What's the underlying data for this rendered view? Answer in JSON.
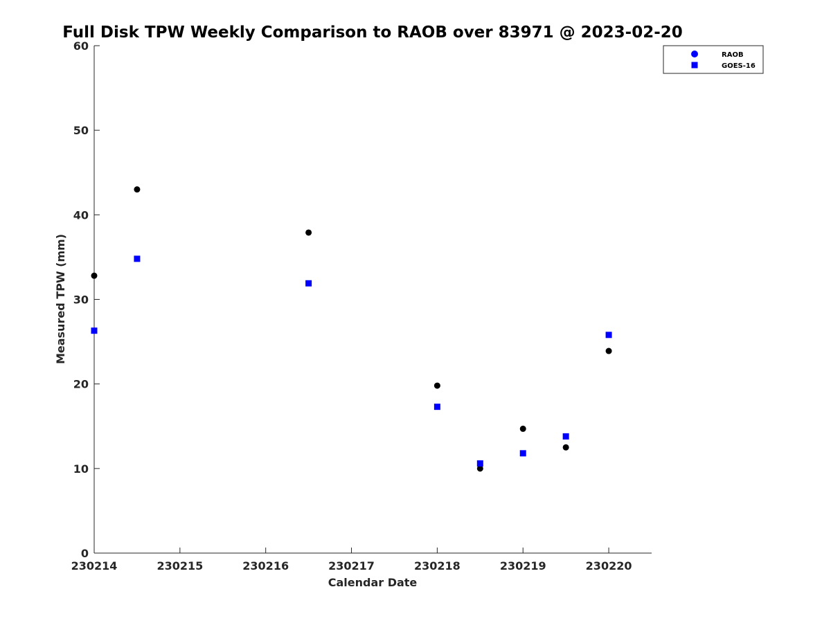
{
  "chart_data": {
    "type": "scatter",
    "title": "Full Disk TPW Weekly Comparison to RAOB over 83971 @ 2023-02-20",
    "xlabel": "Calendar Date",
    "ylabel": "Measured TPW (mm)",
    "xlim": [
      230214,
      230220.5
    ],
    "ylim": [
      0,
      60
    ],
    "xticks": [
      230214,
      230215,
      230216,
      230217,
      230218,
      230219,
      230220
    ],
    "xtick_labels": [
      "230214",
      "230215",
      "230216",
      "230217",
      "230218",
      "230219",
      "230220"
    ],
    "yticks": [
      0,
      10,
      20,
      30,
      40,
      50,
      60
    ],
    "ytick_labels": [
      "0",
      "10",
      "20",
      "30",
      "40",
      "50",
      "60"
    ],
    "grid": false,
    "legend_position": "top-right",
    "series": [
      {
        "name": "RAOB",
        "marker": "circle",
        "color": "#000000",
        "legend_color": "#0000ff",
        "x": [
          230214.0,
          230214.5,
          230216.5,
          230218.0,
          230218.5,
          230219.0,
          230219.5,
          230220.0
        ],
        "y": [
          32.8,
          43.0,
          37.9,
          19.8,
          10.0,
          14.7,
          12.5,
          23.9
        ]
      },
      {
        "name": "GOES-16",
        "marker": "square",
        "color": "#0000ff",
        "legend_color": "#0000ff",
        "x": [
          230214.0,
          230214.5,
          230216.5,
          230218.0,
          230218.5,
          230219.0,
          230219.5,
          230220.0
        ],
        "y": [
          26.3,
          34.8,
          31.9,
          17.3,
          10.6,
          11.8,
          13.8,
          25.8
        ]
      }
    ]
  }
}
